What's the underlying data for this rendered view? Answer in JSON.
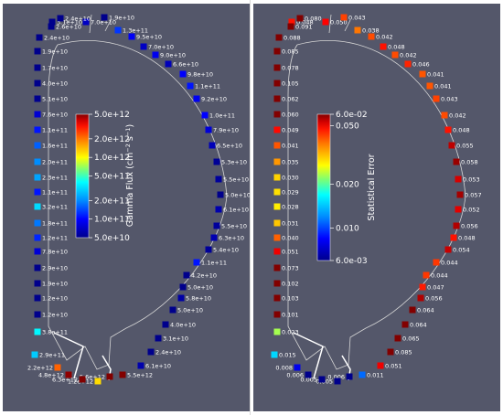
{
  "colors": {
    "background": "#54576a",
    "outline": "#d6d6d6",
    "text": "#ffffff"
  },
  "left_panel": {
    "colorbar_title": "Gamma Flux (cm",
    "colorbar_title_sup1": "−2",
    "colorbar_title_mid": " s",
    "colorbar_title_sup2": "−1",
    "colorbar_title_end": ")",
    "colorbar_ticks": [
      "5.0e+12",
      "2.0e+12",
      "1.0e+12",
      "5.0e+11",
      "2.0e+11",
      "1.0e+11",
      "5.0e+10"
    ],
    "colorbar_scale": "log",
    "colorbar_range": [
      50000000000,
      5000000000000
    ],
    "points": [
      {
        "label": "3.1e+10",
        "value": 31000000000.0
      },
      {
        "label": "7.0e+10",
        "value": 70000000000.0
      },
      {
        "label": "1.9e+10",
        "value": 19000000000.0
      },
      {
        "label": "1.3e+11",
        "value": 130000000000.0
      },
      {
        "label": "9.5e+10",
        "value": 95000000000.0
      },
      {
        "label": "7.0e+10",
        "value": 70000000000.0
      },
      {
        "label": "9.0e+10",
        "value": 90000000000.0
      },
      {
        "label": "6.6e+10",
        "value": 66000000000.0
      },
      {
        "label": "9.8e+10",
        "value": 98000000000.0
      },
      {
        "label": "1.1e+11",
        "value": 110000000000.0
      },
      {
        "label": "9.2e+10",
        "value": 92000000000.0
      },
      {
        "label": "1.0e+11",
        "value": 100000000000.0
      },
      {
        "label": "7.9e+10",
        "value": 79000000000.0
      },
      {
        "label": "6.5e+10",
        "value": 65000000000.0
      },
      {
        "label": "5.3e+10",
        "value": 53000000000.0
      },
      {
        "label": "5.5e+10",
        "value": 55000000000.0
      },
      {
        "label": "5.0e+10",
        "value": 50000000000.0
      },
      {
        "label": "6.1e+10",
        "value": 61000000000.0
      },
      {
        "label": "5.5e+10",
        "value": 55000000000.0
      },
      {
        "label": "6.3e+10",
        "value": 63000000000.0
      },
      {
        "label": "5.4e+10",
        "value": 54000000000.0
      },
      {
        "label": "1.1e+11",
        "value": 110000000000.0
      },
      {
        "label": "4.2e+10",
        "value": 42000000000.0
      },
      {
        "label": "5.0e+10",
        "value": 50000000000.0
      },
      {
        "label": "5.8e+10",
        "value": 58000000000.0
      },
      {
        "label": "5.0e+10",
        "value": 50000000000.0
      },
      {
        "label": "4.0e+10",
        "value": 40000000000.0
      },
      {
        "label": "3.1e+10",
        "value": 31000000000.0
      },
      {
        "label": "2.4e+10",
        "value": 24000000000.0
      },
      {
        "label": "6.1e+10",
        "value": 61000000000.0
      },
      {
        "label": "5.5e+12",
        "value": 5500000000000.0
      },
      {
        "label": "5.6e+12",
        "value": 5600000000000.0
      },
      {
        "label": "1.2e+12",
        "value": 1200000000000.0
      },
      {
        "label": "6.3e+12",
        "value": 6300000000000.0
      },
      {
        "label": "4.8e+12",
        "value": 4800000000000.0
      },
      {
        "label": "2.2e+12",
        "value": 2200000000000.0
      },
      {
        "label": "2.9e+11",
        "value": 290000000000.0
      },
      {
        "label": "3.8e+11",
        "value": 380000000000.0
      },
      {
        "label": "1.2e+10",
        "value": 12000000000.0
      },
      {
        "label": "1.2e+10",
        "value": 12000000000.0
      },
      {
        "label": "1.9e+10",
        "value": 19000000000.0
      },
      {
        "label": "2.9e+10",
        "value": 29000000000.0
      },
      {
        "label": "7.8e+10",
        "value": 78000000000.0
      },
      {
        "label": "1.2e+11",
        "value": 120000000000.0
      },
      {
        "label": "1.8e+11",
        "value": 180000000000.0
      },
      {
        "label": "3.2e+11",
        "value": 320000000000.0
      },
      {
        "label": "1.1e+11",
        "value": 110000000000.0
      },
      {
        "label": "2.3e+11",
        "value": 230000000000.0
      },
      {
        "label": "2.0e+11",
        "value": 200000000000.0
      },
      {
        "label": "1.6e+11",
        "value": 160000000000.0
      },
      {
        "label": "1.1e+11",
        "value": 110000000000.0
      },
      {
        "label": "7.6e+10",
        "value": 76000000000.0
      },
      {
        "label": "5.1e+10",
        "value": 51000000000.0
      },
      {
        "label": "4.0e+10",
        "value": 40000000000.0
      },
      {
        "label": "1.7e+10",
        "value": 17000000000.0
      },
      {
        "label": "1.9e+10",
        "value": 19000000000.0
      },
      {
        "label": "2.4e+10",
        "value": 24000000000.0
      },
      {
        "label": "2.6e+10",
        "value": 26000000000.0
      },
      {
        "label": "2.4e+10",
        "value": 24000000000.0
      }
    ]
  },
  "right_panel": {
    "colorbar_title": "Statistical Error",
    "colorbar_ticks": [
      "6.0e-02",
      "0.050",
      "0.020",
      "0.010",
      "6.0e-03"
    ],
    "colorbar_scale": "log",
    "colorbar_range": [
      0.006,
      0.06
    ],
    "points": [
      {
        "label": "0.048",
        "value": 0.048
      },
      {
        "label": "0.050",
        "value": 0.05
      },
      {
        "label": "0.043",
        "value": 0.043
      },
      {
        "label": "0.038",
        "value": 0.038
      },
      {
        "label": "0.042",
        "value": 0.042
      },
      {
        "label": "0.048",
        "value": 0.048
      },
      {
        "label": "0.042",
        "value": 0.042
      },
      {
        "label": "0.046",
        "value": 0.046
      },
      {
        "label": "0.041",
        "value": 0.041
      },
      {
        "label": "0.041",
        "value": 0.041
      },
      {
        "label": "0.043",
        "value": 0.043
      },
      {
        "label": "0.042",
        "value": 0.042
      },
      {
        "label": "0.048",
        "value": 0.048
      },
      {
        "label": "0.055",
        "value": 0.055
      },
      {
        "label": "0.058",
        "value": 0.058
      },
      {
        "label": "0.053",
        "value": 0.053
      },
      {
        "label": "0.057",
        "value": 0.057
      },
      {
        "label": "0.052",
        "value": 0.052
      },
      {
        "label": "0.056",
        "value": 0.056
      },
      {
        "label": "0.048",
        "value": 0.048
      },
      {
        "label": "0.054",
        "value": 0.054
      },
      {
        "label": "0.044",
        "value": 0.044
      },
      {
        "label": "0.044",
        "value": 0.044
      },
      {
        "label": "0.047",
        "value": 0.047
      },
      {
        "label": "0.056",
        "value": 0.056
      },
      {
        "label": "0.064",
        "value": 0.064
      },
      {
        "label": "0.064",
        "value": 0.064
      },
      {
        "label": "0.065",
        "value": 0.065
      },
      {
        "label": "0.085",
        "value": 0.085
      },
      {
        "label": "0.051",
        "value": 0.051
      },
      {
        "label": "0.011",
        "value": 0.011
      },
      {
        "label": "0.006",
        "value": 0.006
      },
      {
        "label": "0.005",
        "value": 0.005
      },
      {
        "label": "0.005",
        "value": 0.005
      },
      {
        "label": "0.006",
        "value": 0.006
      },
      {
        "label": "0.008",
        "value": 0.008
      },
      {
        "label": "0.015",
        "value": 0.015
      },
      {
        "label": "0.023",
        "value": 0.023
      },
      {
        "label": "0.101",
        "value": 0.101
      },
      {
        "label": "0.103",
        "value": 0.103
      },
      {
        "label": "0.102",
        "value": 0.102
      },
      {
        "label": "0.073",
        "value": 0.073
      },
      {
        "label": "0.051",
        "value": 0.051
      },
      {
        "label": "0.040",
        "value": 0.04
      },
      {
        "label": "0.031",
        "value": 0.031
      },
      {
        "label": "0.028",
        "value": 0.028
      },
      {
        "label": "0.029",
        "value": 0.029
      },
      {
        "label": "0.030",
        "value": 0.03
      },
      {
        "label": "0.035",
        "value": 0.035
      },
      {
        "label": "0.041",
        "value": 0.041
      },
      {
        "label": "0.049",
        "value": 0.049
      },
      {
        "label": "0.060",
        "value": 0.06
      },
      {
        "label": "0.062",
        "value": 0.062
      },
      {
        "label": "0.105",
        "value": 0.105
      },
      {
        "label": "0.078",
        "value": 0.078
      },
      {
        "label": "0.085",
        "value": 0.085
      },
      {
        "label": "0.088",
        "value": 0.088
      },
      {
        "label": "0.091",
        "value": 0.091
      },
      {
        "label": "0.080",
        "value": 0.08
      }
    ]
  }
}
